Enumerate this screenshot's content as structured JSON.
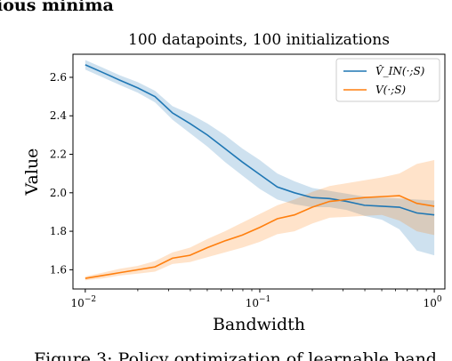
{
  "header_fragment": "ious minima",
  "caption_fragment": "Figure 3: Policy optimization of learnable band",
  "chart_data": {
    "type": "line",
    "title": "100 datapoints, 100 initializations",
    "xlabel": "Bandwidth",
    "ylabel": "Value",
    "xscale": "log",
    "xlim": [
      0.0085,
      1.15
    ],
    "ylim": [
      1.5,
      2.72
    ],
    "x_ticks": [
      0.01,
      0.1,
      1
    ],
    "x_tick_labels": [
      {
        "base": "10",
        "exp": "−2"
      },
      {
        "base": "10",
        "exp": "−1"
      },
      {
        "base": "10",
        "exp": "0"
      }
    ],
    "y_ticks": [
      1.6,
      1.8,
      2.0,
      2.2,
      2.4,
      2.6
    ],
    "y_tick_labels": [
      "1.6",
      "1.8",
      "2.0",
      "2.2",
      "2.4",
      "2.6"
    ],
    "grid": false,
    "legend_position": "top-right",
    "x": [
      0.01,
      0.0126,
      0.0158,
      0.02,
      0.0251,
      0.0316,
      0.0398,
      0.0501,
      0.0631,
      0.0794,
      0.1,
      0.126,
      0.158,
      0.2,
      0.251,
      0.316,
      0.398,
      0.501,
      0.631,
      0.794,
      1.0
    ],
    "series": [
      {
        "name": "V̂_IN(·;S)",
        "color": "#1f77b4",
        "values": [
          2.665,
          2.625,
          2.585,
          2.545,
          2.5,
          2.415,
          2.36,
          2.3,
          2.23,
          2.16,
          2.095,
          2.03,
          2.0,
          1.975,
          1.97,
          1.955,
          1.935,
          1.93,
          1.925,
          1.895,
          1.885
        ],
        "lower": [
          2.64,
          2.6,
          2.56,
          2.52,
          2.47,
          2.38,
          2.31,
          2.24,
          2.16,
          2.09,
          2.02,
          1.965,
          1.94,
          1.925,
          1.925,
          1.91,
          1.88,
          1.86,
          1.81,
          1.7,
          1.675
        ],
        "upper": [
          2.69,
          2.65,
          2.61,
          2.575,
          2.53,
          2.45,
          2.41,
          2.36,
          2.3,
          2.23,
          2.17,
          2.1,
          2.06,
          2.025,
          2.01,
          1.995,
          1.98,
          1.975,
          1.97,
          1.965,
          1.96
        ]
      },
      {
        "name": "V(·;S)",
        "color": "#ff7f0e",
        "values": [
          1.555,
          1.57,
          1.585,
          1.6,
          1.615,
          1.66,
          1.675,
          1.715,
          1.75,
          1.78,
          1.82,
          1.865,
          1.885,
          1.925,
          1.955,
          1.965,
          1.975,
          1.98,
          1.985,
          1.945,
          1.93
        ],
        "lower": [
          1.545,
          1.555,
          1.57,
          1.58,
          1.59,
          1.63,
          1.64,
          1.665,
          1.69,
          1.715,
          1.745,
          1.785,
          1.8,
          1.84,
          1.87,
          1.875,
          1.88,
          1.885,
          1.855,
          1.8,
          1.78
        ],
        "upper": [
          1.565,
          1.585,
          1.605,
          1.62,
          1.645,
          1.69,
          1.715,
          1.76,
          1.8,
          1.845,
          1.89,
          1.935,
          1.965,
          2.005,
          2.035,
          2.05,
          2.065,
          2.08,
          2.1,
          2.15,
          2.17
        ]
      }
    ]
  }
}
